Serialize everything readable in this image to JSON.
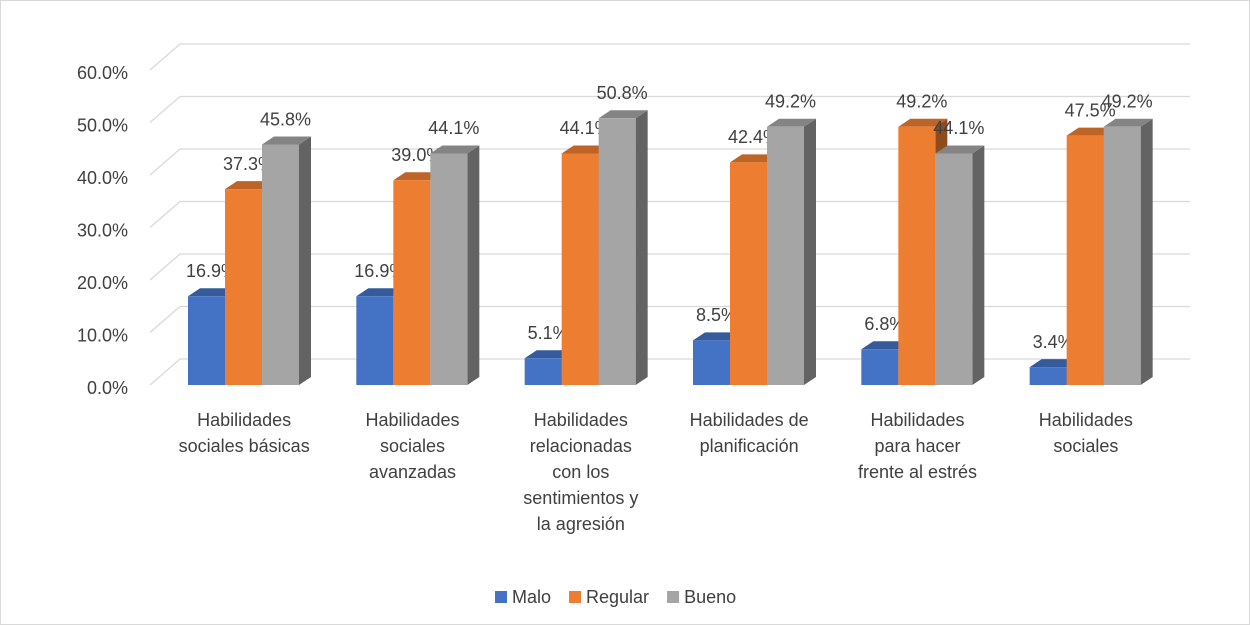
{
  "chart_data": {
    "type": "bar3d",
    "categories": [
      "Habilidades\nsociales básicas",
      "Habilidades\nsociales\navanzadas",
      "Habilidades\nrelacionadas\ncon los\nsentimientos y\nla agresión",
      "Habilidades de\nplanificación",
      "Habilidades\npara hacer\nfrente al estrés",
      "Habilidades\nsociales"
    ],
    "series": [
      {
        "name": "Malo",
        "color": "#4472c4",
        "values": [
          16.9,
          16.9,
          5.1,
          8.5,
          6.8,
          3.4
        ],
        "value_labels": [
          "16.9%",
          "16.9%",
          "5.1%",
          "8.5%",
          "6.8%",
          "3.4%"
        ]
      },
      {
        "name": "Regular",
        "color": "#ed7d31",
        "values": [
          37.3,
          39.0,
          44.1,
          42.4,
          49.2,
          47.5
        ],
        "value_labels": [
          "37.3%",
          "39.0%",
          "44.1%",
          "42.4%",
          "49.2%",
          "47.5%"
        ]
      },
      {
        "name": "Bueno",
        "color": "#a5a5a5",
        "values": [
          45.8,
          44.1,
          50.8,
          49.2,
          44.1,
          49.2
        ],
        "value_labels": [
          "45.8%",
          "44.1%",
          "50.8%",
          "49.2%",
          "44.1%",
          "49.2%"
        ]
      }
    ],
    "ylim": [
      0,
      60
    ],
    "yticks": [
      {
        "value": 0,
        "label": "0.0%"
      },
      {
        "value": 10,
        "label": "10.0%"
      },
      {
        "value": 20,
        "label": "20.0%"
      },
      {
        "value": 30,
        "label": "30.0%"
      },
      {
        "value": 40,
        "label": "40.0%"
      },
      {
        "value": 50,
        "label": "50.0%"
      },
      {
        "value": 60,
        "label": "60.0%"
      }
    ],
    "grid": true,
    "legend": "bottom"
  }
}
